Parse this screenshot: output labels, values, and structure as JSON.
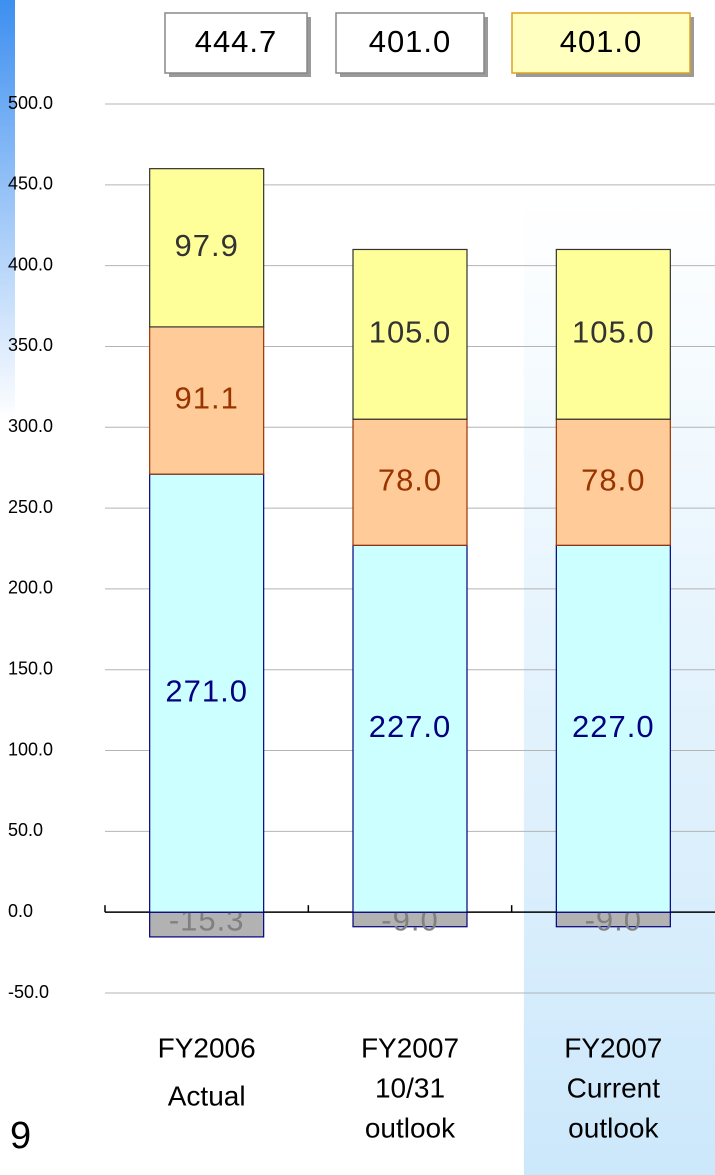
{
  "chart_data": {
    "type": "stacked_bar",
    "categories": [
      [
        "FY2006",
        "Actual"
      ],
      [
        "FY2007",
        "10/31",
        "outlook"
      ],
      [
        "FY2007",
        "Current",
        "outlook"
      ]
    ],
    "series": [
      {
        "color": "#b2b2b2",
        "stroke": "#000080",
        "label_color": "#808080",
        "values": [
          -15.3,
          -9,
          -9
        ],
        "value_labels": [
          "-15.3",
          "-9.0",
          "-9.0"
        ]
      },
      {
        "color": "#ccffff",
        "stroke": "#000080",
        "label_color": "#000080",
        "values": [
          271,
          227,
          227
        ],
        "value_labels": [
          "271.0",
          "227.0",
          "227.0"
        ]
      },
      {
        "color": "#ffcc99",
        "stroke": "#993300",
        "label_color": "#993300",
        "values": [
          91.1,
          78,
          78
        ],
        "value_labels": [
          "91.1",
          "78.0",
          "78.0"
        ]
      },
      {
        "color": "#ffff99",
        "stroke": "#333333",
        "label_color": "#333333",
        "values": [
          97.9,
          105,
          105
        ],
        "value_labels": [
          "97.9",
          "105.0",
          "105.0"
        ]
      }
    ],
    "totals": {
      "values": [
        444.7,
        401,
        401
      ],
      "value_labels": [
        "444.7",
        "401.0",
        "401.0"
      ],
      "highlight": 2
    },
    "highlight_category": 2,
    "ylim": [
      -50,
      500
    ],
    "yticks": [
      {
        "value": -50,
        "label": "-50.0"
      },
      {
        "value": 0,
        "label": "0.0"
      },
      {
        "value": 50,
        "label": "50.0"
      },
      {
        "value": 100,
        "label": "100.0"
      },
      {
        "value": 150,
        "label": "150.0"
      },
      {
        "value": 200,
        "label": "200.0"
      },
      {
        "value": 250,
        "label": "250.0"
      },
      {
        "value": 300,
        "label": "300.0"
      },
      {
        "value": 350,
        "label": "350.0"
      },
      {
        "value": 400,
        "label": "400.0"
      },
      {
        "value": 450,
        "label": "450.0"
      },
      {
        "value": 500,
        "label": "500.0"
      }
    ],
    "grid": true
  },
  "page_number": "9"
}
